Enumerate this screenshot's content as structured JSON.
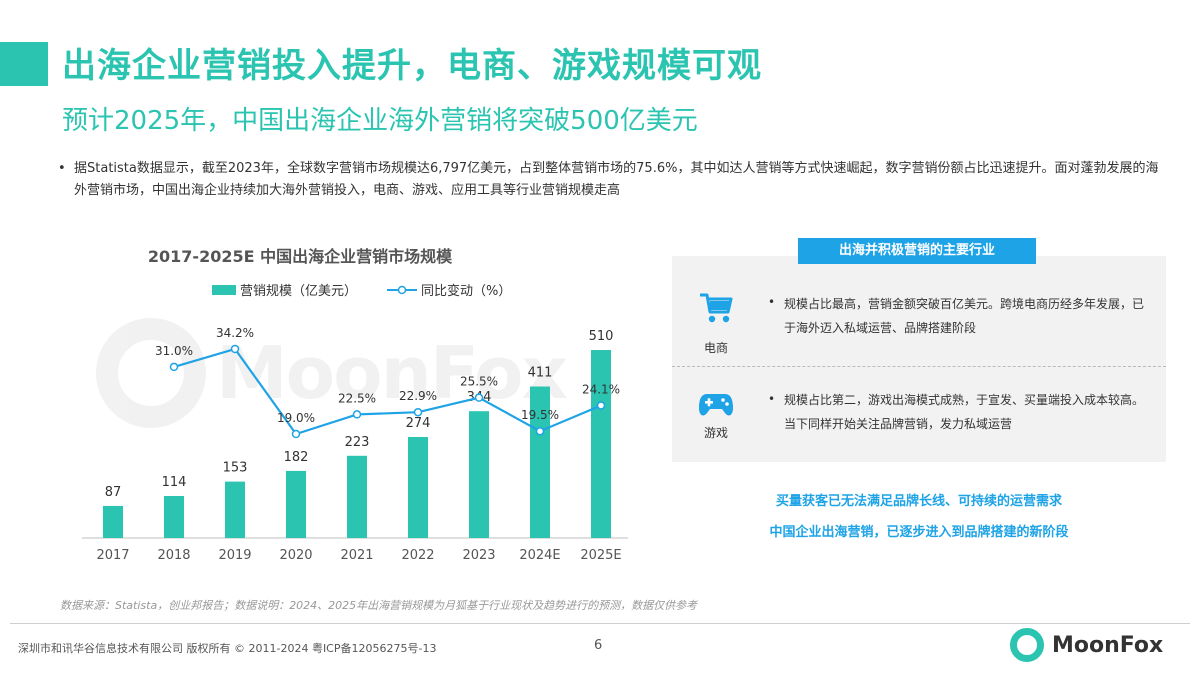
{
  "header": {
    "title": "出海企业营销投入提升，电商、游戏规模可观",
    "subtitle": "预计2025年，中国出海企业海外营销将突破500亿美元"
  },
  "description": {
    "bullet": "•",
    "text": "据Statista数据显示，截至2023年，全球数字营销市场规模达6,797亿美元，占到整体营销市场的75.6%，其中如达人营销等方式快速崛起，数字营销份额占比迅速提升。面对蓬勃发展的海外营销市场，中国出海企业持续加大海外营销投入，电商、游戏、应用工具等行业营销规模走高"
  },
  "chart_data": {
    "type": "bar",
    "title": "2017-2025E 中国出海企业营销市场规模",
    "categories": [
      "2017",
      "2018",
      "2019",
      "2020",
      "2021",
      "2022",
      "2023",
      "2024E",
      "2025E"
    ],
    "series": [
      {
        "name": "营销规模（亿美元）",
        "type": "bar",
        "values": [
          87,
          114,
          153,
          182,
          223,
          274,
          344,
          411,
          510
        ],
        "labels": [
          "87",
          "114",
          "153",
          "182",
          "223",
          "274",
          "344",
          "411",
          "510"
        ],
        "color": "#2bc4b1"
      },
      {
        "name": "同比变动（%）",
        "type": "line",
        "values": [
          null,
          31.0,
          34.2,
          19.0,
          22.5,
          22.9,
          25.5,
          19.5,
          24.1
        ],
        "labels": [
          "",
          "31.0%",
          "34.2%",
          "19.0%",
          "22.5%",
          "22.9%",
          "25.5%",
          "19.5%",
          "24.1%"
        ],
        "color": "#1ea3e6"
      }
    ],
    "ylim": [
      0,
      510
    ],
    "y2lim": [
      0,
      40
    ],
    "legend": "top",
    "grid": false
  },
  "watermark": {
    "text": "MoonFox"
  },
  "panel": {
    "heading": "出海并积极营销的主要行业",
    "rows": [
      {
        "icon": "shopping-cart-icon",
        "label": "电商",
        "bullet": "•",
        "text": "规模占比最高，营销金额突破百亿美元。跨境电商历经多年发展，已于海外迈入私域运营、品牌搭建阶段"
      },
      {
        "icon": "gamepad-icon",
        "label": "游戏",
        "bullet": "•",
        "text": "规模占比第二，游戏出海模式成熟，于宣发、买量端投入成本较高。当下同样开始关注品牌营销，发力私域运营"
      }
    ]
  },
  "conclusion": {
    "line1": "买量获客已无法满足品牌长线、可持续的运营需求",
    "line2": "中国企业出海营销，已逐步进入到品牌搭建的新阶段"
  },
  "footer": {
    "source": "数据来源：Statista，创业邦报告；数据说明：2024、2025年出海营销规模为月狐基于行业现状及趋势进行的预测，数据仅供参考",
    "copyright": "深圳市和讯华谷信息技术有限公司 版权所有 © 2011-2024 粤ICP备12056275号-13",
    "page": "6",
    "logo_text": "MoonFox"
  },
  "colors": {
    "accent": "#2bc4b1",
    "blue": "#1ea3e6"
  }
}
